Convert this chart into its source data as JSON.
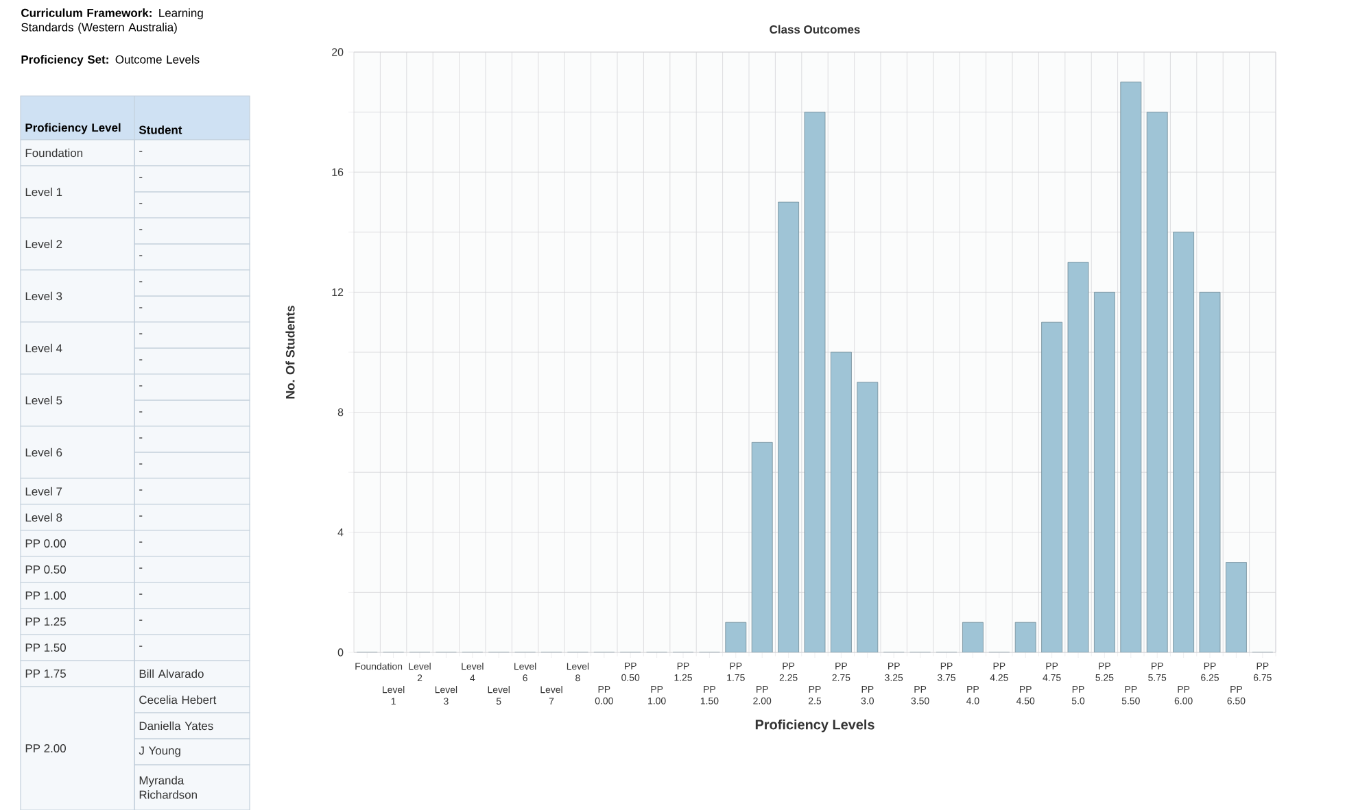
{
  "chart_data": [
    {
      "type": "other",
      "annotations": [
        "**Curriculum Framework:** Learning Standards (Western Australia)",
        "**Proficiency Set:** Outcome Levels"
      ],
      "categories": [
        "Proficiency Level",
        "Student"
      ],
      "y_categories": [
        "Foundation",
        "Level 1",
        "Level 2",
        "Level 3",
        "Level 4",
        "Level 5",
        "Level 6",
        "Level 7",
        "Level 8",
        "PP 0.00",
        "PP 0.50",
        "PP 1.00",
        "PP 1.25",
        "PP 1.50",
        "PP 1.75",
        "PP 2.00"
      ],
      "cell_labels": [
        [
          "-"
        ],
        [
          "-",
          "-"
        ],
        [
          "-",
          "-"
        ],
        [
          "-",
          "-"
        ],
        [
          "-",
          "-"
        ],
        [
          "-",
          "-"
        ],
        [
          "-",
          "-"
        ],
        [
          "-"
        ],
        [
          "-"
        ],
        [
          "-"
        ],
        [
          "-"
        ],
        [
          "-"
        ],
        [
          "-"
        ],
        [
          "-"
        ],
        [
          "Bill Alvarado"
        ],
        [
          "Cecelia Hebert",
          "Daniella Yates",
          "J Young",
          "Myranda Richardson"
        ]
      ]
    },
    {
      "type": "bar",
      "title": "Class Outcomes",
      "xlabel": "Proficiency Levels",
      "ylabel": "No. Of Students",
      "categories": [
        "Foundation",
        "Level 1",
        "Level 2",
        "Level 3",
        "Level 4",
        "Level 5",
        "Level 6",
        "Level 7",
        "Level 8",
        "PP 0.00",
        "PP 0.50",
        "PP 1.00",
        "PP 1.25",
        "PP 1.50",
        "PP 1.75",
        "PP 2.00",
        "PP 2.25",
        "PP 2.5",
        "PP 2.75",
        "PP 3.0",
        "PP 3.25",
        "PP 3.50",
        "PP 3.75",
        "PP 4.0",
        "PP 4.25",
        "PP 4.50",
        "PP 4.75",
        "PP 5.0",
        "PP 5.25",
        "PP 5.50",
        "PP 5.75",
        "PP 6.00",
        "PP 6.25",
        "PP 6.50",
        "PP 6.75"
      ],
      "values": [
        0,
        0,
        0,
        0,
        0,
        0,
        0,
        0,
        0,
        0,
        0,
        0,
        0,
        0,
        1,
        7,
        15,
        18,
        10,
        9,
        0,
        0,
        0,
        1,
        0,
        1,
        11,
        13,
        12,
        19,
        18,
        14,
        12,
        3,
        0
      ],
      "color": "#9fc4d6",
      "ylim": [
        0,
        20
      ],
      "yticks": [
        0,
        {
          "value": 2,
          "label": null
        },
        4,
        {
          "value": 6,
          "label": null
        },
        8,
        {
          "value": 10,
          "label": null
        },
        12,
        {
          "value": 14,
          "label": null
        },
        16,
        {
          "value": 18,
          "label": null
        },
        20
      ],
      "grid": true
    }
  ]
}
